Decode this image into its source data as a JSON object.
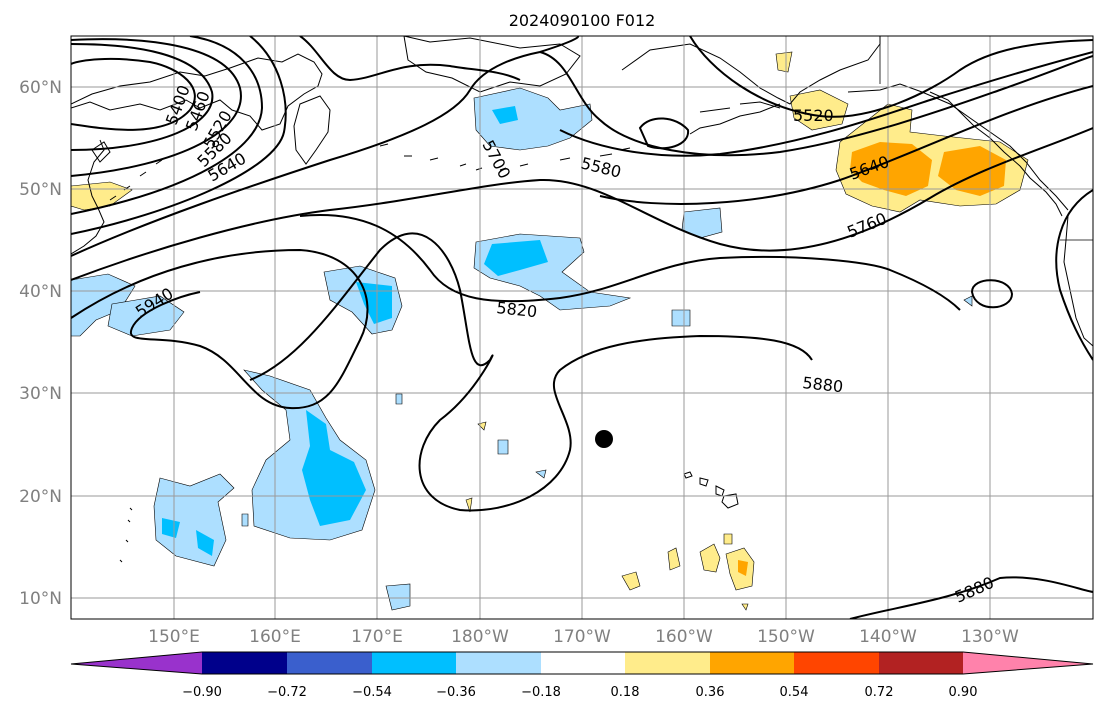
{
  "title": "2024090100 F012",
  "map": {
    "lat_labels": [
      "60°N",
      "50°N",
      "40°N",
      "30°N",
      "20°N",
      "10°N"
    ],
    "lon_labels": [
      "150°E",
      "160°E",
      "170°E",
      "180°W",
      "170°W",
      "160°W",
      "150°W",
      "140°W",
      "130°W"
    ],
    "extent": {
      "lon_min": 140,
      "lon_max": 242,
      "lat_min": 8,
      "lat_max": 65
    },
    "marker": {
      "name": "position-marker",
      "lon": 193.2,
      "lat": 25.6
    },
    "contour_labels": [
      "5400",
      "5460",
      "5520",
      "5580",
      "5640",
      "5700",
      "5580",
      "5520",
      "5640",
      "5760",
      "5940",
      "5820",
      "5880",
      "5880"
    ]
  },
  "colorbar": {
    "ticks": [
      "−0.90",
      "−0.72",
      "−0.54",
      "−0.36",
      "−0.18",
      "0.18",
      "0.36",
      "0.54",
      "0.72",
      "0.90"
    ],
    "colors": [
      "#9932CC",
      "#00008B",
      "#3A5FCD",
      "#00BFFF",
      "#ADDFFF",
      "#FFFFFF",
      "#FFEC8B",
      "#FFA500",
      "#FF4500",
      "#B22222",
      "#FF82AB"
    ]
  }
}
